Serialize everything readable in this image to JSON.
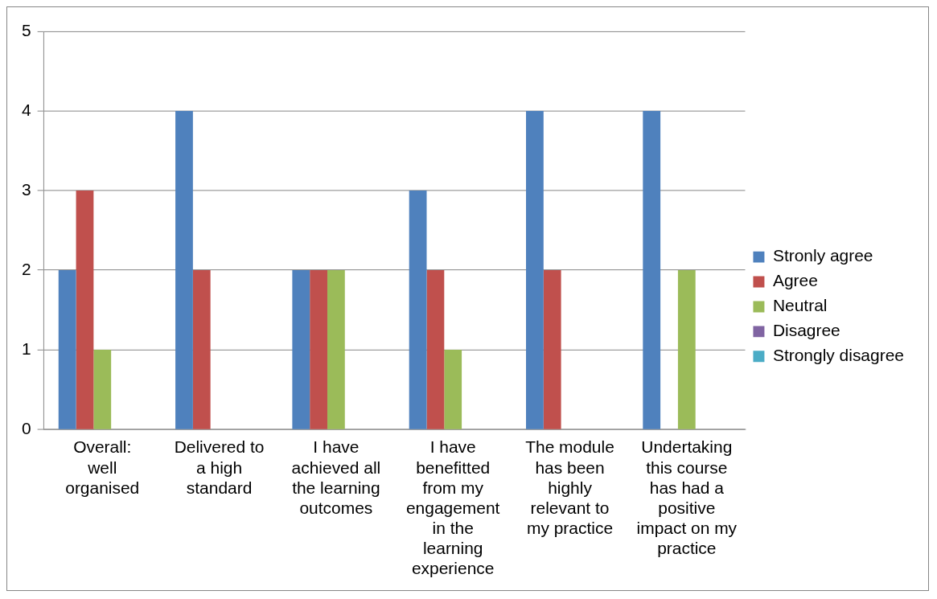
{
  "chart_data": {
    "type": "bar",
    "categories": [
      "Overall: well organised",
      "Delivered to a high standard",
      "I have achieved all the learning outcomes",
      "I have benefitted from my engagement in the learning experience",
      "The module has been highly relevant to my practice",
      "Undertaking this course has had a positive impact on my practice"
    ],
    "series": [
      {
        "name": "Stronly agree",
        "color": "#4f81bd",
        "values": [
          2,
          4,
          2,
          3,
          4,
          4
        ]
      },
      {
        "name": "Agree",
        "color": "#c0504d",
        "values": [
          3,
          2,
          2,
          2,
          2,
          0
        ]
      },
      {
        "name": "Neutral",
        "color": "#9bbb59",
        "values": [
          1,
          0,
          2,
          1,
          0,
          2
        ]
      },
      {
        "name": "Disagree",
        "color": "#8064a2",
        "values": [
          0,
          0,
          0,
          0,
          0,
          0
        ]
      },
      {
        "name": "Strongly disagree",
        "color": "#4bacc6",
        "values": [
          0,
          0,
          0,
          0,
          0,
          0
        ]
      }
    ],
    "ylim": [
      0,
      5
    ],
    "yticks": [
      0,
      1,
      2,
      3,
      4,
      5
    ],
    "grid": "y",
    "legend": "right"
  }
}
